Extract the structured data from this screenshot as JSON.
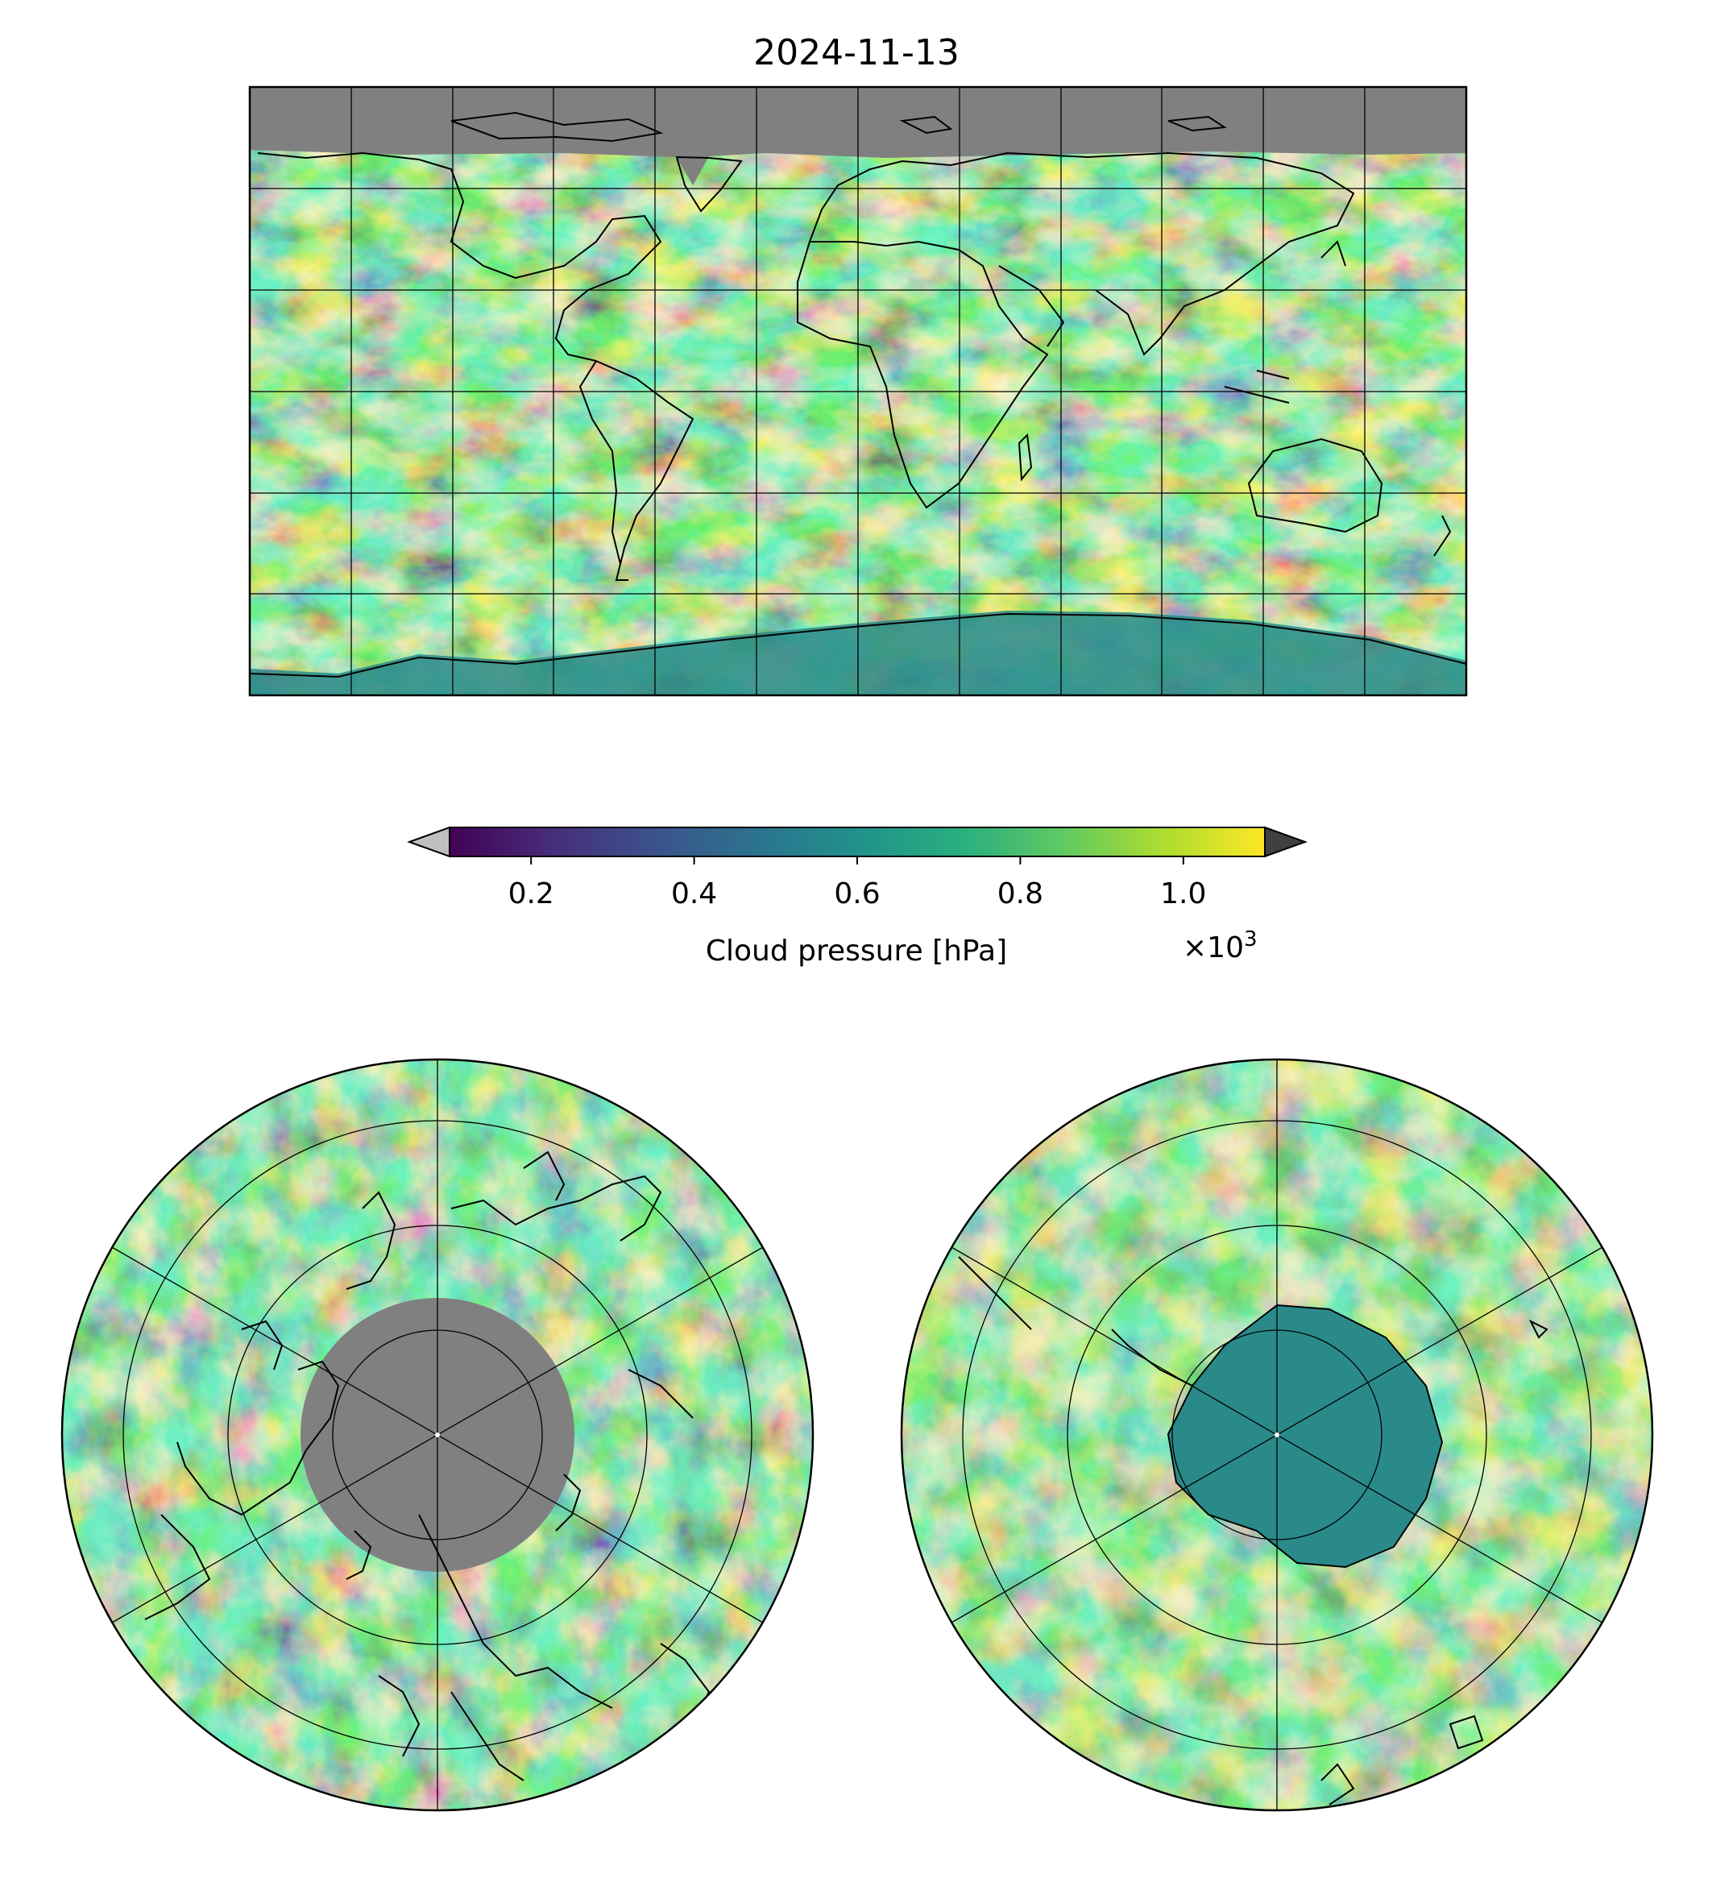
{
  "title": "2024-11-13",
  "colorbar": {
    "label": "Cloud pressure [hPa]",
    "multiplier_base": "×10",
    "multiplier_exponent": "3",
    "ticks": [
      {
        "value": 0.2,
        "label": "0.2"
      },
      {
        "value": 0.4,
        "label": "0.4"
      },
      {
        "value": 0.6,
        "label": "0.6"
      },
      {
        "value": 0.8,
        "label": "0.8"
      },
      {
        "value": 1.0,
        "label": "1.0"
      }
    ],
    "range": [
      0.1,
      1.1
    ],
    "colormap": "viridis",
    "under_color": "#bfbfbf",
    "over_color": "#404040"
  },
  "colors": {
    "nodata": "#808080",
    "viridis": [
      "#440154",
      "#3b528b",
      "#21918c",
      "#5ec962",
      "#b5de2b",
      "#fde725"
    ]
  },
  "maps": [
    {
      "name": "global-map",
      "projection": "equirectangular"
    },
    {
      "name": "north-polar-map",
      "projection": "north-polar-stereographic"
    },
    {
      "name": "south-polar-map",
      "projection": "south-polar-stereographic"
    }
  ]
}
